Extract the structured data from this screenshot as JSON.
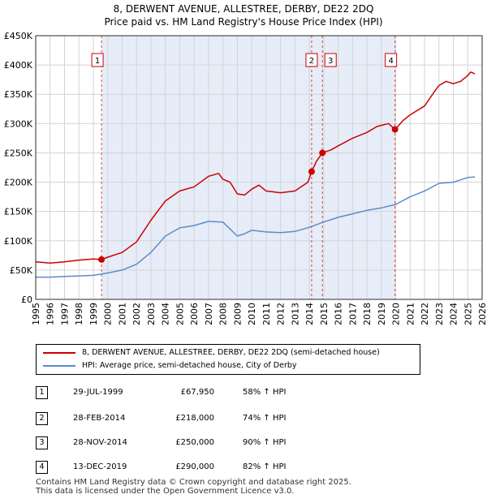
{
  "title": {
    "line1": "8, DERWENT AVENUE, ALLESTREE, DERBY, DE22 2DQ",
    "line2": "Price paid vs. HM Land Registry's House Price Index (HPI)"
  },
  "colors": {
    "property": "#cc0000",
    "hpi": "#5b8dc9",
    "band": "#e6ecf8",
    "grid": "#d4d4d4",
    "sale_line": "#cc0000"
  },
  "chart_data": {
    "type": "line",
    "title": "Price paid vs. HM Land Registry's House Price Index (HPI)",
    "xlabel": "",
    "ylabel": "",
    "xlim": [
      1995,
      2026
    ],
    "ylim": [
      0,
      450000
    ],
    "x_ticks": [
      1995,
      1996,
      1997,
      1998,
      1999,
      2000,
      2001,
      2002,
      2003,
      2004,
      2005,
      2006,
      2007,
      2008,
      2009,
      2010,
      2011,
      2012,
      2013,
      2014,
      2015,
      2016,
      2017,
      2018,
      2019,
      2020,
      2021,
      2022,
      2023,
      2024,
      2025,
      2026
    ],
    "y_ticks": [
      0,
      50000,
      100000,
      150000,
      200000,
      250000,
      300000,
      350000,
      400000,
      450000
    ],
    "y_tick_labels": [
      "£0",
      "£50K",
      "£100K",
      "£150K",
      "£200K",
      "£250K",
      "£300K",
      "£350K",
      "£400K",
      "£450K"
    ],
    "grid": true,
    "shaded_band": [
      1999.57,
      2019.95
    ],
    "series": [
      {
        "name": "8, DERWENT AVENUE, ALLESTREE, DERBY, DE22 2DQ (semi-detached house)",
        "x": [
          1995,
          1996,
          1997,
          1998,
          1999,
          1999.57,
          2000,
          2001,
          2002,
          2003,
          2004,
          2005,
          2006,
          2007,
          2007.7,
          2008,
          2008.5,
          2009,
          2009.5,
          2010,
          2010.5,
          2011,
          2012,
          2013,
          2013.9,
          2014.16,
          2014.5,
          2014.91,
          2015.5,
          2016,
          2017,
          2018,
          2018.7,
          2019.5,
          2019.95,
          2020.5,
          2021,
          2022,
          2022.7,
          2023,
          2023.5,
          2024,
          2024.5,
          2025,
          2025.2,
          2025.5
        ],
        "values": [
          64000,
          62000,
          64000,
          67000,
          69000,
          67950,
          72000,
          80000,
          98000,
          135000,
          168000,
          185000,
          192000,
          210000,
          215000,
          205000,
          200000,
          180000,
          178000,
          188000,
          195000,
          185000,
          182000,
          185000,
          200000,
          218000,
          236000,
          250000,
          255000,
          262000,
          275000,
          285000,
          295000,
          300000,
          290000,
          305000,
          315000,
          330000,
          355000,
          365000,
          372000,
          368000,
          372000,
          382000,
          388000,
          385000
        ]
      },
      {
        "name": "HPI: Average price, semi-detached house, City of Derby",
        "x": [
          1995,
          1996,
          1997,
          1998,
          1999,
          2000,
          2001,
          2002,
          2003,
          2004,
          2005,
          2006,
          2007,
          2008,
          2009,
          2009.5,
          2010,
          2011,
          2012,
          2013,
          2014,
          2015,
          2016,
          2017,
          2018,
          2019,
          2020,
          2021,
          2022,
          2023,
          2024,
          2025,
          2025.5
        ],
        "values": [
          38000,
          38000,
          39000,
          40000,
          41000,
          45000,
          50000,
          60000,
          80000,
          108000,
          122000,
          126000,
          133000,
          132000,
          108000,
          112000,
          118000,
          115000,
          114000,
          116000,
          123000,
          132000,
          140000,
          146000,
          152000,
          156000,
          162000,
          175000,
          185000,
          198000,
          200000,
          208000,
          209000
        ]
      }
    ],
    "annotations": [
      {
        "label": "1",
        "x": 1999.57,
        "y": 67950
      },
      {
        "label": "2",
        "x": 2014.16,
        "y": 218000
      },
      {
        "label": "3",
        "x": 2014.91,
        "y": 250000
      },
      {
        "label": "4",
        "x": 2019.95,
        "y": 290000
      }
    ]
  },
  "legend": {
    "property_label": "8, DERWENT AVENUE, ALLESTREE, DERBY, DE22 2DQ (semi-detached house)",
    "hpi_label": "HPI: Average price, semi-detached house, City of Derby"
  },
  "sales": [
    {
      "num": "1",
      "date": "29-JUL-1999",
      "price": "£67,950",
      "hpi": "58% ↑ HPI"
    },
    {
      "num": "2",
      "date": "28-FEB-2014",
      "price": "£218,000",
      "hpi": "74% ↑ HPI"
    },
    {
      "num": "3",
      "date": "28-NOV-2014",
      "price": "£250,000",
      "hpi": "90% ↑ HPI"
    },
    {
      "num": "4",
      "date": "13-DEC-2019",
      "price": "£290,000",
      "hpi": "82% ↑ HPI"
    }
  ],
  "footer": {
    "line1": "Contains HM Land Registry data © Crown copyright and database right 2025.",
    "line2": "This data is licensed under the Open Government Licence v3.0."
  }
}
